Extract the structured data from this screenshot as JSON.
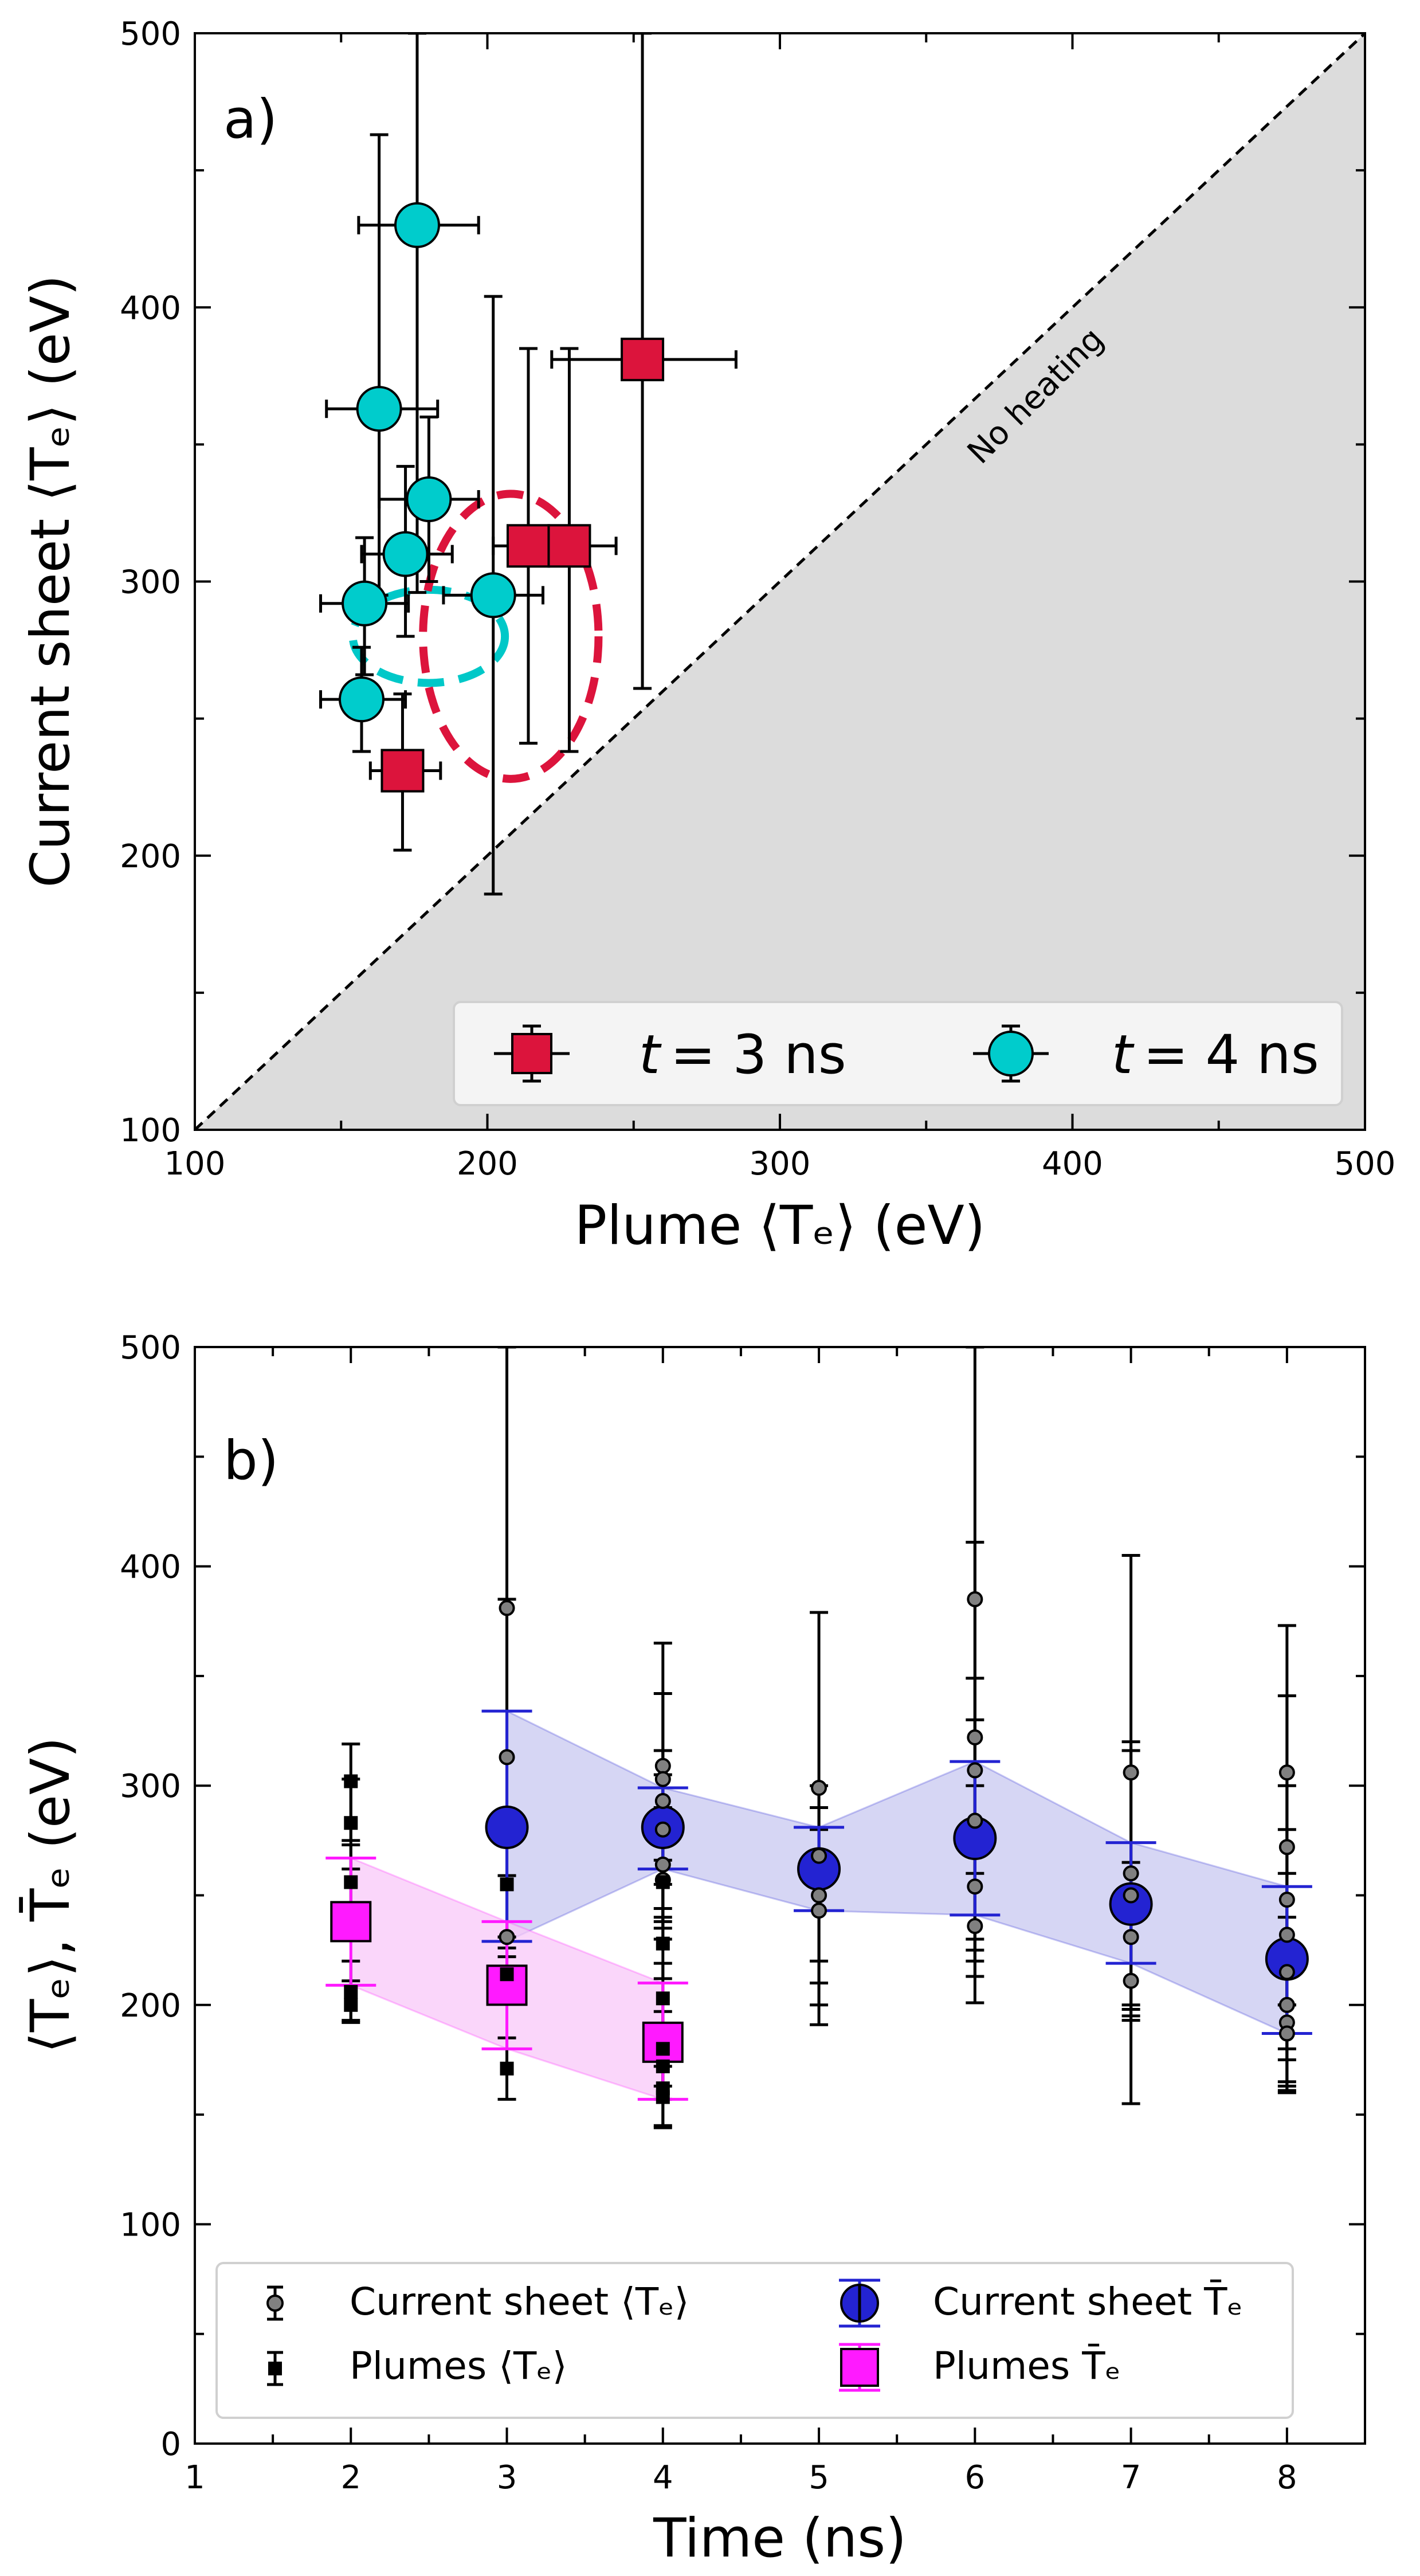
{
  "chart_data": [
    {
      "type": "scatter",
      "panel_label": "a)",
      "xlabel": "Plume ⟨Tₑ⟩ (eV)",
      "ylabel": "Current sheet ⟨Tₑ⟩ (eV)",
      "xlim": [
        100,
        500
      ],
      "ylim": [
        100,
        500
      ],
      "xticks": [
        "100",
        "200",
        "300",
        "400",
        "500"
      ],
      "yticks": [
        "100",
        "200",
        "300",
        "400",
        "500"
      ],
      "diagonal_label": "No heating",
      "legend_position": "lower-right",
      "series": [
        {
          "name": "t = 3 ns",
          "legend_prefix": "t",
          "legend_suffix": "= 3 ns",
          "marker": "square",
          "color": "#dc143c",
          "points": [
            {
              "x": 171,
              "y": 231,
              "xerr": [
                160,
                184
              ],
              "yerr": [
                202,
                259
              ]
            },
            {
              "x": 214,
              "y": 313,
              "xerr": [
                202,
                226
              ],
              "yerr": [
                241,
                385
              ]
            },
            {
              "x": 228,
              "y": 313,
              "xerr": [
                212,
                244
              ],
              "yerr": [
                238,
                385
              ]
            },
            {
              "x": 253,
              "y": 381,
              "xerr": [
                222,
                285
              ],
              "yerr": [
                261,
                500
              ]
            }
          ]
        },
        {
          "name": "t = 4 ns",
          "legend_prefix": "t",
          "legend_suffix": "= 4 ns",
          "marker": "circle",
          "color": "#00cccc",
          "points": [
            {
              "x": 176,
              "y": 430,
              "xerr": [
                156,
                197
              ],
              "yerr": [
                296,
                500
              ]
            },
            {
              "x": 163,
              "y": 363,
              "xerr": [
                145,
                183
              ],
              "yerr": [
                295,
                463
              ]
            },
            {
              "x": 180,
              "y": 330,
              "xerr": [
                163,
                197
              ],
              "yerr": [
                300,
                360
              ]
            },
            {
              "x": 172,
              "y": 310,
              "xerr": [
                157,
                188
              ],
              "yerr": [
                280,
                342
              ]
            },
            {
              "x": 158,
              "y": 292,
              "xerr": [
                143,
                173
              ],
              "yerr": [
                266,
                316
              ]
            },
            {
              "x": 202,
              "y": 295,
              "xerr": [
                185,
                219
              ],
              "yerr": [
                186,
                404
              ]
            },
            {
              "x": 157,
              "y": 257,
              "xerr": [
                143,
                172
              ],
              "yerr": [
                238,
                276
              ]
            }
          ]
        }
      ],
      "ellipses": [
        {
          "cx": 180,
          "cy": 280,
          "rx": 26,
          "ry": 17,
          "color": "#00c8c8"
        },
        {
          "cx": 208,
          "cy": 280,
          "rx": 30,
          "ry": 52,
          "color": "#dc143c"
        }
      ]
    },
    {
      "type": "scatter",
      "panel_label": "b)",
      "xlabel": "Time (ns)",
      "ylabel": "⟨Tₑ⟩, T̄ₑ (eV)",
      "xlim": [
        1,
        8.5
      ],
      "ylim": [
        0,
        500
      ],
      "xticks": [
        "1",
        "2",
        "3",
        "4",
        "5",
        "6",
        "7",
        "8"
      ],
      "yticks": [
        "0",
        "100",
        "200",
        "300",
        "400",
        "500"
      ],
      "legend_position": "lower-left",
      "series": [
        {
          "name": "Current sheet ⟨Tₑ⟩",
          "legend_label": "Current sheet ⟨Tₑ⟩",
          "marker": "small-circle",
          "color": "#808080",
          "points": [
            {
              "x": 3,
              "y": 381,
              "yerr": [
                231,
                500
              ]
            },
            {
              "x": 3,
              "y": 313,
              "yerr": [
                231,
                385
              ]
            },
            {
              "x": 3,
              "y": 231,
              "yerr": [
                202,
                259
              ]
            },
            {
              "x": 4,
              "y": 309,
              "yerr": [
                280,
                342
              ]
            },
            {
              "x": 4,
              "y": 303,
              "yerr": [
                235,
                365
              ]
            },
            {
              "x": 4,
              "y": 293,
              "yerr": [
                266,
                316
              ]
            },
            {
              "x": 4,
              "y": 280,
              "yerr": [
                255,
                305
              ]
            },
            {
              "x": 4,
              "y": 264,
              "yerr": [
                240,
                290
              ]
            },
            {
              "x": 4,
              "y": 257,
              "yerr": [
                238,
                276
              ]
            },
            {
              "x": 5,
              "y": 299,
              "yerr": [
                210,
                379
              ]
            },
            {
              "x": 5,
              "y": 268,
              "yerr": [
                220,
                300
              ]
            },
            {
              "x": 5,
              "y": 250,
              "yerr": [
                200,
                290
              ]
            },
            {
              "x": 5,
              "y": 243,
              "yerr": [
                191,
                280
              ]
            },
            {
              "x": 6,
              "y": 385,
              "yerr": [
                260,
                500
              ]
            },
            {
              "x": 6,
              "y": 322,
              "yerr": [
                230,
                411
              ]
            },
            {
              "x": 6,
              "y": 307,
              "yerr": [
                225,
                349
              ]
            },
            {
              "x": 6,
              "y": 284,
              "yerr": [
                220,
                330
              ]
            },
            {
              "x": 6,
              "y": 254,
              "yerr": [
                213,
                300
              ]
            },
            {
              "x": 6,
              "y": 236,
              "yerr": [
                201,
                280
              ]
            },
            {
              "x": 7,
              "y": 306,
              "yerr": [
                155,
                405
              ]
            },
            {
              "x": 7,
              "y": 260,
              "yerr": [
                195,
                320
              ]
            },
            {
              "x": 7,
              "y": 250,
              "yerr": [
                198,
                316
              ]
            },
            {
              "x": 7,
              "y": 231,
              "yerr": [
                200,
                265
              ]
            },
            {
              "x": 7,
              "y": 211,
              "yerr": [
                193,
                240
              ]
            },
            {
              "x": 8,
              "y": 306,
              "yerr": [
                200,
                373
              ]
            },
            {
              "x": 8,
              "y": 272,
              "yerr": [
                200,
                341
              ]
            },
            {
              "x": 8,
              "y": 248,
              "yerr": [
                180,
                300
              ]
            },
            {
              "x": 8,
              "y": 232,
              "yerr": [
                175,
                280
              ]
            },
            {
              "x": 8,
              "y": 215,
              "yerr": [
                165,
                260
              ]
            },
            {
              "x": 8,
              "y": 200,
              "yerr": [
                163,
                240
              ]
            },
            {
              "x": 8,
              "y": 192,
              "yerr": [
                161,
                225
              ]
            },
            {
              "x": 8,
              "y": 187,
              "yerr": [
                160,
                215
              ]
            }
          ]
        },
        {
          "name": "Plumes ⟨Tₑ⟩",
          "legend_label": "Plumes ⟨Tₑ⟩",
          "marker": "small-square",
          "color": "#000000",
          "points": [
            {
              "x": 2,
              "y": 302,
              "yerr": [
                275,
                319
              ]
            },
            {
              "x": 2,
              "y": 283,
              "yerr": [
                262,
                303
              ]
            },
            {
              "x": 2,
              "y": 256,
              "yerr": [
                238,
                273
              ]
            },
            {
              "x": 2,
              "y": 206,
              "yerr": [
                192,
                220
              ]
            },
            {
              "x": 2,
              "y": 200,
              "yerr": [
                193,
                211
              ]
            },
            {
              "x": 3,
              "y": 255,
              "yerr": [
                222,
                288
              ]
            },
            {
              "x": 3,
              "y": 214,
              "yerr": [
                202,
                226
              ]
            },
            {
              "x": 3,
              "y": 171,
              "yerr": [
                157,
                185
              ]
            },
            {
              "x": 4,
              "y": 256,
              "yerr": [
                230,
                282
              ]
            },
            {
              "x": 4,
              "y": 228,
              "yerr": [
                212,
                244
              ]
            },
            {
              "x": 4,
              "y": 203,
              "yerr": [
                185,
                219
              ]
            },
            {
              "x": 4,
              "y": 180,
              "yerr": [
                163,
                197
              ]
            },
            {
              "x": 4,
              "y": 172,
              "yerr": [
                157,
                188
              ]
            },
            {
              "x": 4,
              "y": 162,
              "yerr": [
                144,
                178
              ]
            },
            {
              "x": 4,
              "y": 158,
              "yerr": [
                145,
                172
              ]
            }
          ]
        },
        {
          "name": "Current sheet T̄ₑ",
          "legend_label": "Current sheet T̄ₑ",
          "marker": "circle",
          "color": "#2323d2",
          "band_color": "#c8c8f0",
          "points": [
            {
              "x": 3,
              "y": 281,
              "yerr": [
                229,
                334
              ]
            },
            {
              "x": 4,
              "y": 281,
              "yerr": [
                262,
                299
              ]
            },
            {
              "x": 5,
              "y": 262,
              "yerr": [
                243,
                281
              ]
            },
            {
              "x": 6,
              "y": 276,
              "yerr": [
                241,
                311
              ]
            },
            {
              "x": 7,
              "y": 246,
              "yerr": [
                219,
                274
              ]
            },
            {
              "x": 8,
              "y": 221,
              "yerr": [
                187,
                254
              ]
            }
          ]
        },
        {
          "name": "Plumes T̄ₑ",
          "legend_label": "Plumes T̄ₑ",
          "marker": "square",
          "color": "#ff1aff",
          "band_color": "#f8c8f8",
          "points": [
            {
              "x": 2,
              "y": 238,
              "yerr": [
                209,
                267
              ]
            },
            {
              "x": 3,
              "y": 209,
              "yerr": [
                180,
                238
              ]
            },
            {
              "x": 4,
              "y": 183,
              "yerr": [
                157,
                210
              ]
            }
          ]
        }
      ]
    }
  ]
}
